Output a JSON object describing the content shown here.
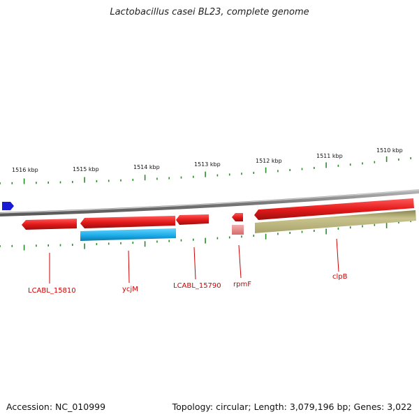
{
  "title": "Lactobacillus casei BL23, complete genome",
  "footer": {
    "accession": "Accession: NC_010999",
    "summary": "Topology: circular; Length: 3,079,196 bp; Genes: 3,022"
  },
  "ruler": {
    "unit": "kbp",
    "ticks": [
      1516,
      1515,
      1514,
      1513,
      1512,
      1511,
      1510
    ],
    "tick_labels": [
      "1516 kbp",
      "1515 kbp",
      "1514 kbp",
      "1513 kbp",
      "1512 kbp",
      "1511 kbp",
      "1510 kbp"
    ],
    "tick_color": "#2a8a2a"
  },
  "backbone_color": "#8a8a8a",
  "features": [
    {
      "name": "LCABL_15810",
      "color": "#e51b1b",
      "strand": "forward",
      "track": "gene"
    },
    {
      "name": "ycjM",
      "color": "#e51b1b",
      "strand": "forward",
      "track": "gene"
    },
    {
      "name": "ycjM-cds",
      "color": "#19a9e6",
      "strand": "forward",
      "track": "cds"
    },
    {
      "name": "LCABL_15790",
      "color": "#e51b1b",
      "strand": "forward",
      "track": "gene"
    },
    {
      "name": "rpmF",
      "color": "#e51b1b",
      "strand": "forward",
      "track": "gene"
    },
    {
      "name": "rpmF-rna",
      "color": "#e88a8a",
      "strand": "forward",
      "track": "cds"
    },
    {
      "name": "clpB",
      "color": "#e51b1b",
      "strand": "forward",
      "track": "gene"
    },
    {
      "name": "clpB-cds",
      "color": "#b9b27a",
      "strand": "forward",
      "track": "cds"
    },
    {
      "name": "upstream-gene",
      "color": "#1a1ad6",
      "strand": "reverse",
      "track": "backbone"
    }
  ],
  "labels": [
    "LCABL_15810",
    "ycjM",
    "LCABL_15790",
    "rpmF",
    "clpB"
  ],
  "label_color": "#cc0000"
}
